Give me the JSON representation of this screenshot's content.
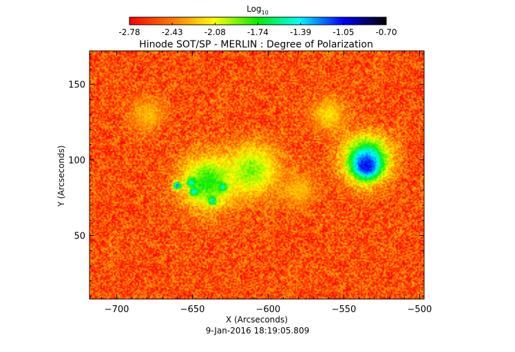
{
  "chart_data": {
    "type": "heatmap",
    "title": "Hinode SOT/SP - MERLIN : Degree of Polarization",
    "xlabel": "X (Arcseconds)",
    "ylabel": "Y (Arcseconds)",
    "xlim": [
      -718,
      -497
    ],
    "ylim": [
      8,
      172
    ],
    "x_ticks": [
      -700,
      -650,
      -600,
      -550,
      -500
    ],
    "y_ticks": [
      50,
      100,
      150
    ],
    "colorbar": {
      "title": "Log",
      "title_subscript": "10",
      "scale": "log10",
      "range": [
        -2.78,
        -0.7
      ],
      "ticks": [
        "-2.78",
        "-2.43",
        "-2.08",
        "-1.74",
        "-1.39",
        "-1.05",
        "-0.70"
      ],
      "colormap": [
        "#ff0000",
        "#ff7a00",
        "#ffff00",
        "#00ee00",
        "#00ffff",
        "#0000ff",
        "#000000"
      ]
    },
    "features": [
      {
        "name": "sunspot umbra",
        "x": -535,
        "y": 96,
        "value": -0.75
      },
      {
        "name": "sunspot penumbra",
        "x": -535,
        "y": 100,
        "value": -1.1
      },
      {
        "name": "pore",
        "x": -660,
        "y": 83,
        "value": -1.0
      },
      {
        "name": "pore",
        "x": -651,
        "y": 85,
        "value": -1.0
      },
      {
        "name": "pore",
        "x": -649,
        "y": 79,
        "value": -1.0
      },
      {
        "name": "pore",
        "x": -637,
        "y": 73,
        "value": -1.05
      },
      {
        "name": "pore",
        "x": -630,
        "y": 82,
        "value": -1.05
      },
      {
        "name": "plage",
        "x": -640,
        "y": 85,
        "value": -1.6
      },
      {
        "name": "plage",
        "x": -610,
        "y": 93,
        "value": -1.8
      },
      {
        "name": "network",
        "x": -680,
        "y": 130,
        "value": -2.2
      },
      {
        "name": "network",
        "x": -560,
        "y": 130,
        "value": -2.1
      },
      {
        "name": "network",
        "x": -580,
        "y": 80,
        "value": -2.2
      },
      {
        "name": "quiet sun",
        "x": -600,
        "y": 50,
        "value": -2.55
      }
    ],
    "background_value": -2.55
  },
  "footer": {
    "timestamp": "9-Jan-2016 18:19:05.809"
  }
}
